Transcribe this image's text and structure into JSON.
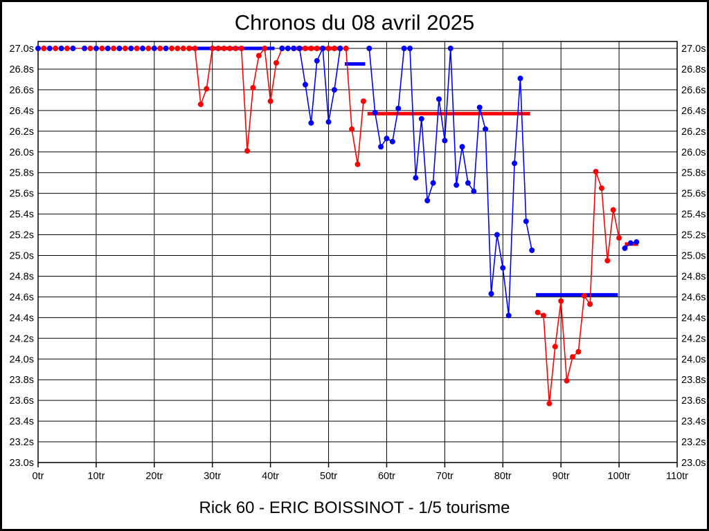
{
  "page": {
    "title": "Chronos du 08 avril 2025",
    "subtitle": "Rick 60 - ERIC BOISSINOT - 1/5 tourisme"
  },
  "chart_data": {
    "type": "line",
    "title": "Chronos du 08 avril 2025",
    "footer": "Rick 60 - ERIC BOISSINOT - 1/5 tourisme",
    "x_unit": "tr",
    "y_unit": "s",
    "xlim": [
      0,
      110
    ],
    "ylim": [
      23.0,
      27.0
    ],
    "grid": true,
    "x_ticks": [
      "0tr",
      "10tr",
      "20tr",
      "30tr",
      "40tr",
      "50tr",
      "60tr",
      "70tr",
      "80tr",
      "90tr",
      "100tr",
      "110tr"
    ],
    "y_ticks": [
      "27.0s",
      "26.8s",
      "26.6s",
      "26.4s",
      "26.2s",
      "26.0s",
      "25.8s",
      "25.6s",
      "25.4s",
      "25.2s",
      "25.0s",
      "24.8s",
      "24.6s",
      "24.4s",
      "24.2s",
      "24.0s",
      "23.8s",
      "23.6s",
      "23.4s",
      "23.2s",
      "23.0s"
    ],
    "colors": {
      "red_series": "#ff0000",
      "blue_series": "#0000ff"
    },
    "clip_max_seconds": 27.0,
    "series": [
      {
        "name": "red_series",
        "color": "#ff0000",
        "points": [
          [
            0,
            27.0,
            0
          ],
          [
            1,
            27.0,
            1
          ],
          [
            2,
            27.0,
            0
          ],
          [
            3,
            27.0,
            1
          ],
          [
            4,
            27.0,
            0
          ],
          [
            5,
            27.0,
            1
          ],
          [
            6,
            27.0,
            0
          ],
          [
            7,
            27.0,
            0
          ],
          [
            8,
            27.0,
            0
          ],
          [
            9,
            27.0,
            1
          ],
          [
            10,
            27.0,
            0
          ],
          [
            11,
            27.0,
            1
          ],
          [
            12,
            27.0,
            0
          ],
          [
            13,
            27.0,
            1
          ],
          [
            14,
            27.0,
            0
          ],
          [
            15,
            27.0,
            1
          ],
          [
            16,
            27.0,
            0
          ],
          [
            17,
            27.0,
            1
          ],
          [
            18,
            27.0,
            0
          ],
          [
            19,
            27.0,
            1
          ],
          [
            20,
            27.0,
            0
          ],
          [
            21,
            27.0,
            1
          ],
          [
            22,
            27.0,
            0
          ],
          [
            23,
            27.0,
            1
          ],
          [
            24,
            27.0,
            1
          ],
          [
            25,
            27.0,
            1
          ],
          [
            26,
            27.0,
            1
          ],
          [
            27,
            27.0,
            1
          ],
          [
            28,
            26.46,
            1
          ],
          [
            29,
            26.61,
            1
          ],
          [
            30,
            27.0,
            1
          ],
          [
            31,
            27.0,
            1
          ],
          [
            32,
            27.0,
            1
          ],
          [
            33,
            27.0,
            1
          ],
          [
            34,
            27.0,
            1
          ],
          [
            35,
            27.0,
            1
          ],
          [
            36,
            26.01,
            1
          ],
          [
            37,
            26.62,
            1
          ],
          [
            38,
            26.93,
            1
          ],
          [
            39,
            27.0,
            1
          ],
          [
            40,
            26.49,
            1
          ],
          [
            41,
            26.86,
            1
          ],
          [
            42,
            27.0,
            1
          ],
          [
            43,
            27.0,
            1
          ],
          [
            44,
            27.0,
            1
          ],
          [
            45,
            27.0,
            1
          ],
          [
            46,
            27.0,
            1
          ],
          [
            47,
            27.0,
            1
          ],
          [
            48,
            27.0,
            1
          ],
          [
            49,
            27.0,
            1
          ],
          [
            50,
            27.0,
            1
          ],
          [
            51,
            27.0,
            1
          ],
          [
            52,
            27.0,
            1
          ],
          [
            53,
            27.0,
            1
          ],
          [
            54,
            26.22,
            1
          ],
          [
            55,
            25.88,
            1
          ],
          [
            56,
            26.49,
            1
          ],
          [
            86,
            24.45,
            1
          ],
          [
            87,
            24.42,
            1
          ],
          [
            88,
            23.57,
            1
          ],
          [
            89,
            24.12,
            1
          ],
          [
            90,
            24.56,
            1
          ],
          [
            91,
            23.79,
            1
          ],
          [
            92,
            24.02,
            1
          ],
          [
            93,
            24.07,
            1
          ],
          [
            94,
            24.61,
            1
          ],
          [
            95,
            24.53,
            1
          ],
          [
            96,
            25.81,
            1
          ],
          [
            97,
            25.65,
            1
          ],
          [
            98,
            24.95,
            1
          ],
          [
            99,
            25.44,
            1
          ],
          [
            100,
            25.17,
            1
          ]
        ]
      },
      {
        "name": "blue_series",
        "color": "#0000ff",
        "points": [
          [
            0,
            27.0,
            1
          ],
          [
            2,
            27.0,
            1
          ],
          [
            4,
            27.0,
            1
          ],
          [
            6,
            27.0,
            1
          ],
          [
            8,
            27.0,
            1
          ],
          [
            10,
            27.0,
            1
          ],
          [
            12,
            27.0,
            1
          ],
          [
            14,
            27.0,
            1
          ],
          [
            16,
            27.0,
            1
          ],
          [
            18,
            27.0,
            1
          ],
          [
            20,
            27.0,
            1
          ],
          [
            22,
            27.0,
            1
          ],
          [
            42,
            27.0,
            1
          ],
          [
            43,
            27.0,
            1
          ],
          [
            44,
            27.0,
            1
          ],
          [
            45,
            27.0,
            1
          ],
          [
            46,
            26.65,
            1
          ],
          [
            47,
            26.28,
            1
          ],
          [
            48,
            26.88,
            1
          ],
          [
            49,
            27.0,
            1
          ],
          [
            50,
            26.29,
            1
          ],
          [
            51,
            26.6,
            1
          ],
          [
            52,
            27.0,
            1
          ],
          [
            57,
            27.0,
            1
          ],
          [
            58,
            26.38,
            1
          ],
          [
            59,
            26.05,
            1
          ],
          [
            60,
            26.13,
            1
          ],
          [
            61,
            26.1,
            1
          ],
          [
            62,
            26.42,
            1
          ],
          [
            63,
            27.0,
            1
          ],
          [
            64,
            27.0,
            1
          ],
          [
            65,
            25.75,
            1
          ],
          [
            66,
            26.32,
            1
          ],
          [
            67,
            25.53,
            1
          ],
          [
            68,
            25.7,
            1
          ],
          [
            69,
            26.51,
            1
          ],
          [
            70,
            26.11,
            1
          ],
          [
            71,
            27.0,
            1
          ],
          [
            72,
            25.68,
            1
          ],
          [
            73,
            26.05,
            1
          ],
          [
            74,
            25.7,
            1
          ],
          [
            75,
            25.62,
            1
          ],
          [
            76,
            26.43,
            1
          ],
          [
            77,
            26.22,
            1
          ],
          [
            78,
            24.63,
            1
          ],
          [
            79,
            25.2,
            1
          ],
          [
            80,
            24.88,
            1
          ],
          [
            81,
            24.42,
            1
          ],
          [
            82,
            25.89,
            1
          ],
          [
            83,
            26.71,
            1
          ],
          [
            84,
            25.33,
            1
          ],
          [
            85,
            25.05,
            1
          ],
          [
            101,
            25.07,
            1
          ],
          [
            102,
            25.12,
            1
          ],
          [
            103,
            25.13,
            1
          ]
        ]
      }
    ],
    "average_segments": [
      {
        "series": "blue_series",
        "time": 27.0,
        "from_lap": 26.0,
        "to_lap": 40.7
      },
      {
        "series": "red_series",
        "time": 27.0,
        "from_lap": 44.0,
        "to_lap": 52.3
      },
      {
        "series": "blue_series",
        "time": 26.85,
        "from_lap": 52.8,
        "to_lap": 56.3
      },
      {
        "series": "red_series",
        "time": 26.37,
        "from_lap": 56.7,
        "to_lap": 84.7
      },
      {
        "series": "blue_series",
        "time": 24.62,
        "from_lap": 85.7,
        "to_lap": 99.8
      },
      {
        "series": "red_series",
        "time": 25.11,
        "from_lap": 101.0,
        "to_lap": 103.3
      }
    ]
  }
}
